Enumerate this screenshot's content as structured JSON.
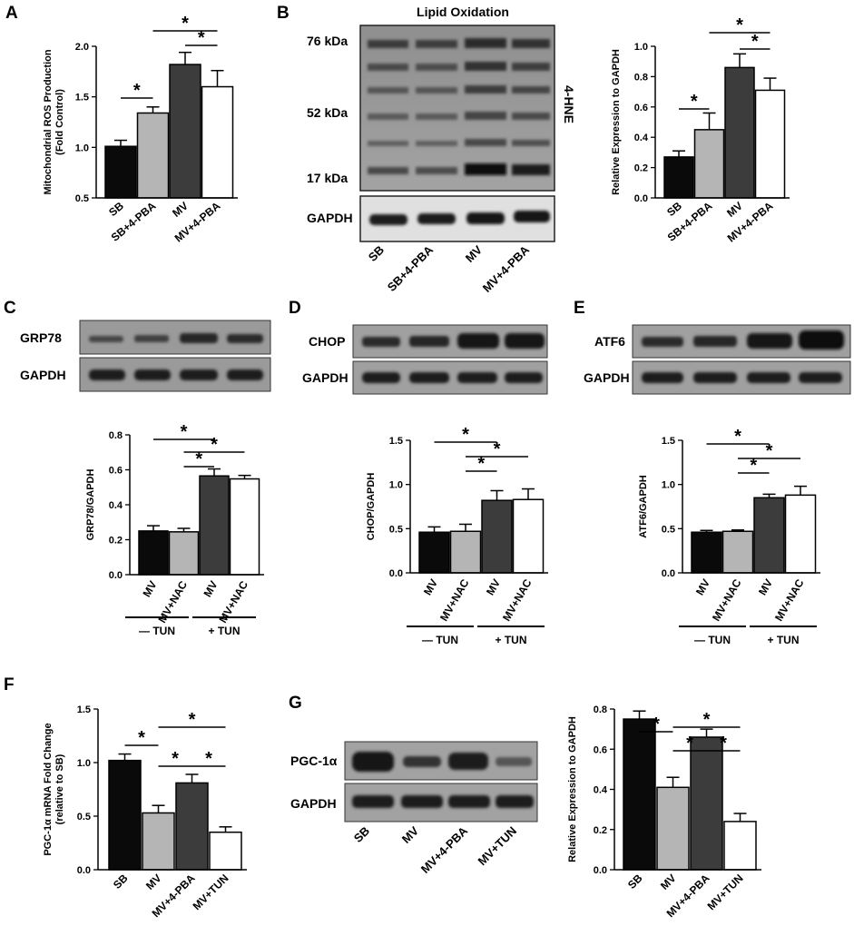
{
  "panels": {
    "A": {
      "label": "A"
    },
    "B": {
      "label": "B",
      "blot_title": "Lipid Oxidation",
      "marker_label": "4-HNE",
      "kda": [
        "76 kDa",
        "52 kDa",
        "17 kDa"
      ],
      "loading": "GAPDH",
      "lanes": [
        "SB",
        "SB+4-PBA",
        "MV",
        "MV+4-PBA"
      ]
    },
    "C": {
      "label": "C",
      "protein": "GRP78",
      "loading": "GAPDH",
      "group_minus": "— TUN",
      "group_plus": "+ TUN"
    },
    "D": {
      "label": "D",
      "protein": "CHOP",
      "loading": "GAPDH",
      "group_minus": "— TUN",
      "group_plus": "+ TUN"
    },
    "E": {
      "label": "E",
      "protein": "ATF6",
      "loading": "GAPDH",
      "group_minus": "— TUN",
      "group_plus": "+ TUN"
    },
    "F": {
      "label": "F"
    },
    "G": {
      "label": "G",
      "protein": "PGC-1α",
      "loading": "GAPDH",
      "lanes": [
        "SB",
        "MV",
        "MV+4-PBA",
        "MV+TUN"
      ]
    }
  },
  "colors": {
    "black": "#0a0a0a",
    "light_gray": "#b5b5b5",
    "dark_gray": "#3c3c3c",
    "white": "#ffffff"
  },
  "chart_data": [
    {
      "id": "A",
      "type": "bar",
      "ylabel": "Mitochondrial ROS Production (Fold Control)",
      "categories": [
        "SB",
        "SB+4-PBA",
        "MV",
        "MV+4-PBA"
      ],
      "values": [
        1.01,
        1.34,
        1.82,
        1.6
      ],
      "errors": [
        0.06,
        0.06,
        0.12,
        0.16
      ],
      "ylim": [
        0.5,
        2.0
      ],
      "yticks": [
        "0.5",
        "1.0",
        "1.5",
        "2.0"
      ],
      "significance": [
        "*",
        "*",
        "*"
      ]
    },
    {
      "id": "B",
      "type": "bar",
      "ylabel": "Relative Expression to GAPDH",
      "categories": [
        "SB",
        "SB+4-PBA",
        "MV",
        "MV+4-PBA"
      ],
      "values": [
        0.27,
        0.45,
        0.86,
        0.71
      ],
      "errors": [
        0.04,
        0.11,
        0.09,
        0.08
      ],
      "ylim": [
        0,
        1.0
      ],
      "yticks": [
        "0.0",
        "0.2",
        "0.4",
        "0.6",
        "0.8",
        "1.0"
      ],
      "significance": [
        "*",
        "*",
        "*"
      ]
    },
    {
      "id": "C",
      "type": "bar",
      "ylabel": "GRP78/GAPDH",
      "categories": [
        "MV",
        "MV+NAC",
        "MV",
        "MV+NAC"
      ],
      "values": [
        0.25,
        0.245,
        0.565,
        0.548
      ],
      "errors": [
        0.03,
        0.02,
        0.04,
        0.02
      ],
      "ylim": [
        0,
        0.8
      ],
      "yticks": [
        "0.0",
        "0.2",
        "0.4",
        "0.6",
        "0.8"
      ],
      "significance": [
        "*",
        "*",
        "*"
      ]
    },
    {
      "id": "D",
      "type": "bar",
      "ylabel": "CHOP/GAPDH",
      "categories": [
        "MV",
        "MV+NAC",
        "MV",
        "MV+NAC"
      ],
      "values": [
        0.46,
        0.47,
        0.82,
        0.83
      ],
      "errors": [
        0.06,
        0.08,
        0.11,
        0.12
      ],
      "ylim": [
        0,
        1.5
      ],
      "yticks": [
        "0.0",
        "0.5",
        "1.0",
        "1.5"
      ],
      "significance": [
        "*",
        "*",
        "*"
      ]
    },
    {
      "id": "E",
      "type": "bar",
      "ylabel": "ATF6/GAPDH",
      "categories": [
        "MV",
        "MV+NAC",
        "MV",
        "MV+NAC"
      ],
      "values": [
        0.46,
        0.47,
        0.85,
        0.88
      ],
      "errors": [
        0.02,
        0.015,
        0.04,
        0.1
      ],
      "ylim": [
        0,
        1.5
      ],
      "yticks": [
        "0.0",
        "0.5",
        "1.0",
        "1.5"
      ],
      "significance": [
        "*",
        "*",
        "*"
      ]
    },
    {
      "id": "F",
      "type": "bar",
      "ylabel": "PGC-1α mRNA Fold Change (relative to SB)",
      "categories": [
        "SB",
        "MV",
        "MV+4-PBA",
        "MV+TUN"
      ],
      "values": [
        1.02,
        0.53,
        0.81,
        0.35
      ],
      "errors": [
        0.06,
        0.07,
        0.08,
        0.05
      ],
      "ylim": [
        0,
        1.5
      ],
      "yticks": [
        "0.0",
        "0.5",
        "1.0",
        "1.5"
      ],
      "significance": [
        "*",
        "*",
        "*",
        "*"
      ]
    },
    {
      "id": "G",
      "type": "bar",
      "ylabel": "Relative Expression to GAPDH",
      "categories": [
        "SB",
        "MV",
        "MV+4-PBA",
        "MV+TUN"
      ],
      "values": [
        0.75,
        0.41,
        0.66,
        0.24
      ],
      "errors": [
        0.04,
        0.05,
        0.04,
        0.04
      ],
      "ylim": [
        0,
        0.8
      ],
      "yticks": [
        "0.0",
        "0.2",
        "0.4",
        "0.6",
        "0.8"
      ],
      "significance": [
        "*",
        "*",
        "*",
        "*"
      ]
    }
  ]
}
